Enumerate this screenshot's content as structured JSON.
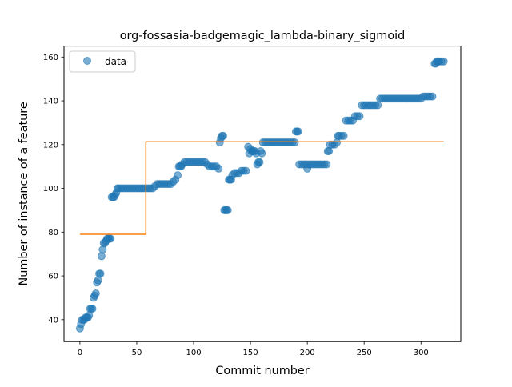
{
  "chart_data": {
    "type": "scatter",
    "title": "org-fossasia-badgemagic_lambda-binary_sigmoid",
    "xlabel": "Commit number",
    "ylabel": "Number of instance of a feature",
    "xlim": [
      -14,
      335
    ],
    "ylim": [
      30,
      165
    ],
    "xticks": [
      0,
      50,
      100,
      150,
      200,
      250,
      300
    ],
    "yticks": [
      40,
      60,
      80,
      100,
      120,
      140,
      160
    ],
    "legend": {
      "position": "top-left",
      "entries": [
        "data"
      ]
    },
    "colors": {
      "data": "#1f77b4",
      "fit": "#ff7f0e"
    },
    "series": [
      {
        "name": "data",
        "kind": "scatter",
        "points": [
          [
            0,
            36
          ],
          [
            1,
            38
          ],
          [
            2,
            40
          ],
          [
            3,
            40
          ],
          [
            4,
            40
          ],
          [
            5,
            41
          ],
          [
            6,
            41
          ],
          [
            7,
            41
          ],
          [
            8,
            42
          ],
          [
            9,
            45
          ],
          [
            10,
            45
          ],
          [
            11,
            45
          ],
          [
            12,
            50
          ],
          [
            13,
            51
          ],
          [
            14,
            52
          ],
          [
            15,
            57
          ],
          [
            16,
            58
          ],
          [
            17,
            61
          ],
          [
            18,
            61
          ],
          [
            19,
            69
          ],
          [
            20,
            72
          ],
          [
            21,
            75
          ],
          [
            22,
            75
          ],
          [
            23,
            76
          ],
          [
            24,
            77
          ],
          [
            25,
            77
          ],
          [
            26,
            77
          ],
          [
            27,
            77
          ],
          [
            28,
            96
          ],
          [
            29,
            96
          ],
          [
            30,
            96
          ],
          [
            31,
            97
          ],
          [
            32,
            98
          ],
          [
            33,
            100
          ],
          [
            34,
            100
          ],
          [
            36,
            100
          ],
          [
            38,
            100
          ],
          [
            40,
            100
          ],
          [
            42,
            100
          ],
          [
            44,
            100
          ],
          [
            46,
            100
          ],
          [
            48,
            100
          ],
          [
            50,
            100
          ],
          [
            52,
            100
          ],
          [
            54,
            100
          ],
          [
            56,
            100
          ],
          [
            58,
            100
          ],
          [
            60,
            100
          ],
          [
            62,
            100
          ],
          [
            64,
            100
          ],
          [
            66,
            101
          ],
          [
            68,
            102
          ],
          [
            70,
            102
          ],
          [
            72,
            102
          ],
          [
            74,
            102
          ],
          [
            76,
            102
          ],
          [
            78,
            102
          ],
          [
            80,
            102
          ],
          [
            82,
            103
          ],
          [
            84,
            104
          ],
          [
            86,
            106
          ],
          [
            87,
            110
          ],
          [
            88,
            110
          ],
          [
            89,
            110
          ],
          [
            90,
            111
          ],
          [
            92,
            112
          ],
          [
            94,
            112
          ],
          [
            96,
            112
          ],
          [
            98,
            112
          ],
          [
            100,
            112
          ],
          [
            102,
            112
          ],
          [
            104,
            112
          ],
          [
            106,
            112
          ],
          [
            108,
            112
          ],
          [
            110,
            112
          ],
          [
            112,
            111
          ],
          [
            114,
            110
          ],
          [
            116,
            110
          ],
          [
            118,
            110
          ],
          [
            120,
            110
          ],
          [
            122,
            109
          ],
          [
            123,
            121
          ],
          [
            124,
            123
          ],
          [
            125,
            124
          ],
          [
            126,
            124
          ],
          [
            127,
            90
          ],
          [
            128,
            90
          ],
          [
            129,
            90
          ],
          [
            130,
            90
          ],
          [
            131,
            104
          ],
          [
            132,
            104
          ],
          [
            133,
            104
          ],
          [
            134,
            106
          ],
          [
            136,
            107
          ],
          [
            138,
            107
          ],
          [
            140,
            107
          ],
          [
            142,
            108
          ],
          [
            144,
            108
          ],
          [
            146,
            108
          ],
          [
            148,
            119
          ],
          [
            149,
            116
          ],
          [
            150,
            118
          ],
          [
            151,
            117
          ],
          [
            152,
            117
          ],
          [
            153,
            117
          ],
          [
            154,
            117
          ],
          [
            155,
            116
          ],
          [
            156,
            111
          ],
          [
            157,
            112
          ],
          [
            158,
            112
          ],
          [
            159,
            117
          ],
          [
            160,
            116
          ],
          [
            161,
            121
          ],
          [
            163,
            121
          ],
          [
            165,
            121
          ],
          [
            167,
            121
          ],
          [
            169,
            121
          ],
          [
            171,
            121
          ],
          [
            173,
            121
          ],
          [
            175,
            121
          ],
          [
            177,
            121
          ],
          [
            179,
            121
          ],
          [
            181,
            121
          ],
          [
            183,
            121
          ],
          [
            185,
            121
          ],
          [
            187,
            121
          ],
          [
            189,
            121
          ],
          [
            190,
            126
          ],
          [
            191,
            126
          ],
          [
            192,
            126
          ],
          [
            193,
            111
          ],
          [
            195,
            111
          ],
          [
            197,
            111
          ],
          [
            199,
            111
          ],
          [
            200,
            109
          ],
          [
            201,
            111
          ],
          [
            203,
            111
          ],
          [
            205,
            111
          ],
          [
            207,
            111
          ],
          [
            209,
            111
          ],
          [
            211,
            111
          ],
          [
            213,
            111
          ],
          [
            215,
            111
          ],
          [
            217,
            111
          ],
          [
            218,
            117
          ],
          [
            219,
            117
          ],
          [
            220,
            120
          ],
          [
            222,
            120
          ],
          [
            224,
            120
          ],
          [
            226,
            121
          ],
          [
            227,
            124
          ],
          [
            228,
            124
          ],
          [
            230,
            124
          ],
          [
            232,
            124
          ],
          [
            234,
            131
          ],
          [
            236,
            131
          ],
          [
            238,
            131
          ],
          [
            240,
            131
          ],
          [
            242,
            133
          ],
          [
            244,
            133
          ],
          [
            246,
            133
          ],
          [
            248,
            138
          ],
          [
            250,
            138
          ],
          [
            252,
            138
          ],
          [
            254,
            138
          ],
          [
            256,
            138
          ],
          [
            258,
            138
          ],
          [
            260,
            138
          ],
          [
            262,
            138
          ],
          [
            264,
            141
          ],
          [
            266,
            141
          ],
          [
            268,
            141
          ],
          [
            270,
            141
          ],
          [
            272,
            141
          ],
          [
            274,
            141
          ],
          [
            276,
            141
          ],
          [
            278,
            141
          ],
          [
            280,
            141
          ],
          [
            282,
            141
          ],
          [
            284,
            141
          ],
          [
            286,
            141
          ],
          [
            288,
            141
          ],
          [
            290,
            141
          ],
          [
            292,
            141
          ],
          [
            294,
            141
          ],
          [
            296,
            141
          ],
          [
            298,
            141
          ],
          [
            300,
            141
          ],
          [
            302,
            142
          ],
          [
            304,
            142
          ],
          [
            306,
            142
          ],
          [
            308,
            142
          ],
          [
            310,
            142
          ],
          [
            312,
            157
          ],
          [
            313,
            157
          ],
          [
            314,
            158
          ],
          [
            315,
            158
          ],
          [
            316,
            158
          ],
          [
            318,
            158
          ],
          [
            320,
            158
          ]
        ]
      },
      {
        "name": "",
        "kind": "line",
        "points": [
          [
            0,
            79
          ],
          [
            58,
            79
          ],
          [
            58,
            121.3
          ],
          [
            320,
            121.3
          ]
        ]
      }
    ]
  }
}
